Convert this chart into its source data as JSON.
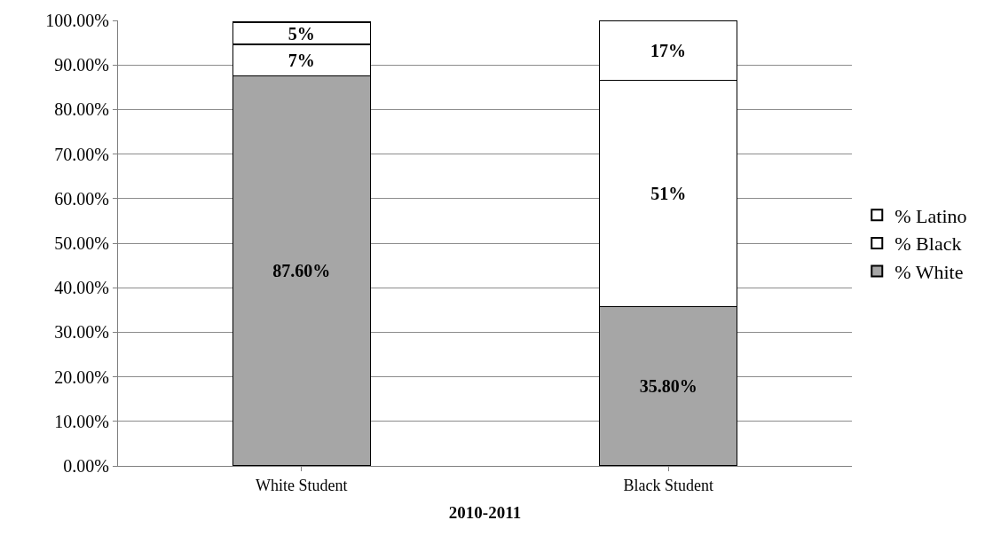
{
  "chart_data": {
    "type": "bar",
    "stacked": true,
    "xlabel": "2010-2011",
    "categories": [
      "White Student",
      "Black Student"
    ],
    "series": [
      {
        "name": "% White",
        "color": "#a6a6a6",
        "values": [
          87.6,
          35.8
        ],
        "value_labels": [
          "87.60%",
          "35.80%"
        ]
      },
      {
        "name": "% Black",
        "color": "#ffffff",
        "values": [
          7,
          50.7
        ],
        "value_labels": [
          "7%",
          "51%"
        ]
      },
      {
        "name": "% Latino",
        "color": "#ffffff",
        "values": [
          5,
          13.5
        ],
        "value_labels": [
          "5%",
          null
        ]
      }
    ],
    "annotations": [
      {
        "text": "17%",
        "x": "Black Student",
        "y": 100
      }
    ],
    "ylim": [
      0,
      100
    ],
    "yticks": [
      {
        "value": 0,
        "label": "0.00%"
      },
      {
        "value": 10,
        "label": "10.00%"
      },
      {
        "value": 20,
        "label": "20.00%"
      },
      {
        "value": 30,
        "label": "30.00%"
      },
      {
        "value": 40,
        "label": "40.00%"
      },
      {
        "value": 50,
        "label": "50.00%"
      },
      {
        "value": 60,
        "label": "60.00%"
      },
      {
        "value": 70,
        "label": "70.00%"
      },
      {
        "value": 80,
        "label": "80.00%"
      },
      {
        "value": 90,
        "label": "90.00%"
      },
      {
        "value": 100,
        "label": "100.00%"
      }
    ],
    "grid": "y",
    "legend": "right"
  }
}
